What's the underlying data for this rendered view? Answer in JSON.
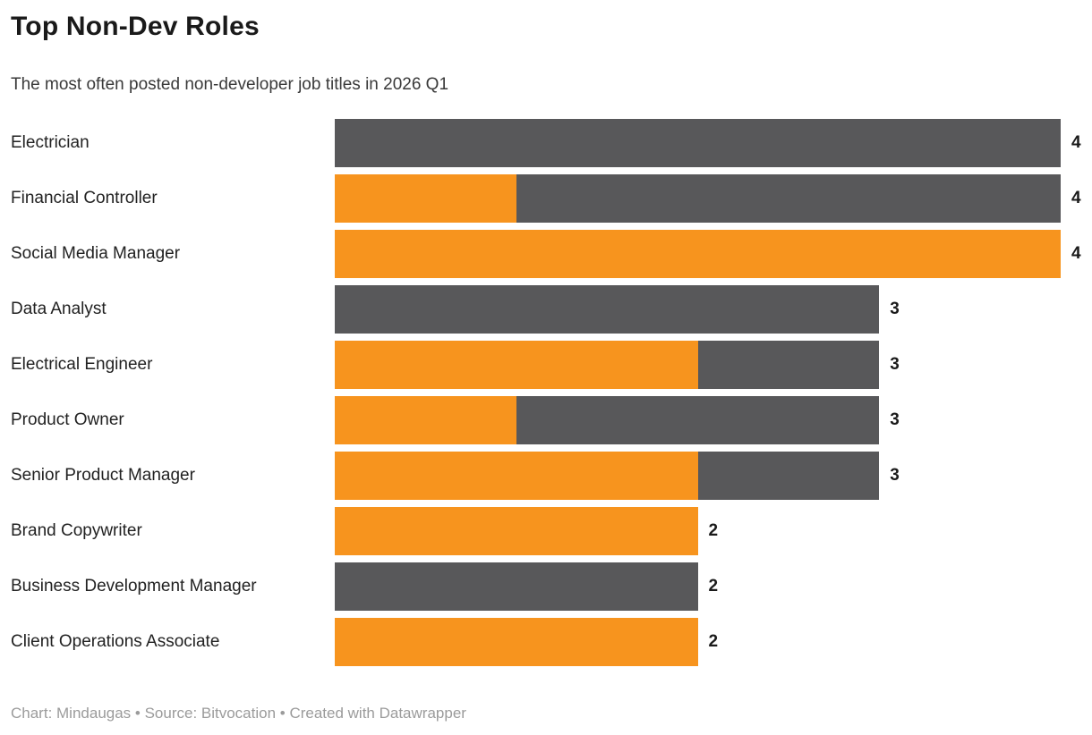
{
  "header": {
    "title": "Top Non-Dev Roles",
    "subtitle": "The most often posted non-developer job titles in 2026 Q1"
  },
  "chart_data": {
    "type": "bar",
    "orientation": "horizontal",
    "stacked": true,
    "grid": false,
    "legend": "none",
    "xlim": [
      0,
      4
    ],
    "value_labels": "right of bar end",
    "categories": [
      "Electrician",
      "Financial Controller",
      "Social Media Manager",
      "Data Analyst",
      "Electrical Engineer",
      "Product Owner",
      "Senior Product Manager",
      "Brand Copywriter",
      "Business Development Manager",
      "Client Operations Associate"
    ],
    "series": [
      {
        "name": "orange-segment",
        "color": "#F7941E",
        "values": [
          0,
          1,
          4,
          0,
          2,
          1,
          2,
          2,
          0,
          2
        ]
      },
      {
        "name": "gray-segment",
        "color": "#58585A",
        "values": [
          4,
          3,
          0,
          3,
          1,
          2,
          1,
          0,
          2,
          0
        ]
      }
    ],
    "totals": [
      4,
      4,
      4,
      3,
      3,
      3,
      3,
      2,
      2,
      2
    ]
  },
  "footer": {
    "text": "Chart: Mindaugas • Source: Bitvocation • Created with Datawrapper"
  },
  "colors": {
    "series_orange": "#F7941E",
    "series_gray": "#58585A",
    "title_text": "#1A1A1A",
    "subtitle_text": "#3A3A3A",
    "category_text": "#222222",
    "value_text": "#1A1A1A",
    "footer_text": "#9B9B9B",
    "background": "#FFFFFF"
  }
}
